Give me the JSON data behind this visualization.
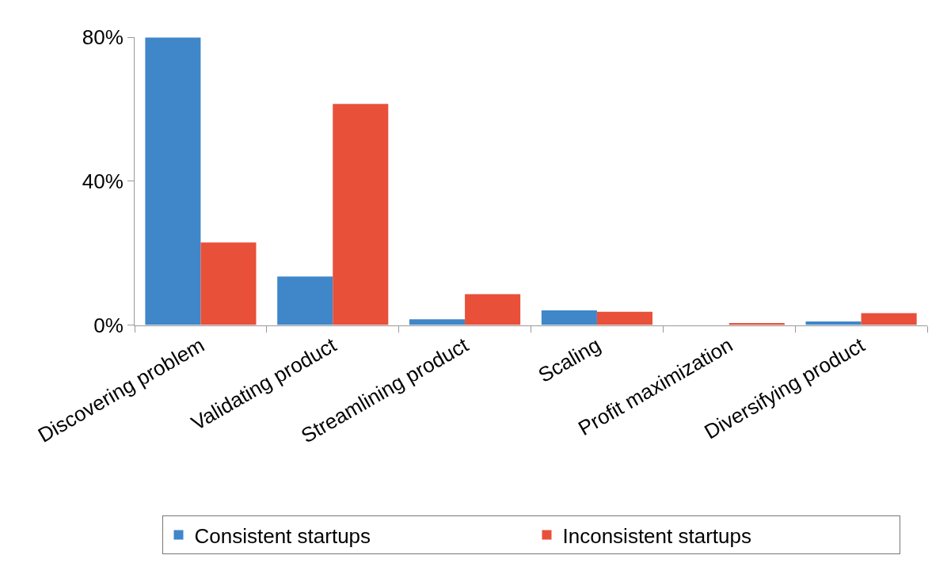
{
  "chart_data": {
    "type": "bar",
    "categories": [
      "Discovering problem",
      "Validating product",
      "Streamlining product",
      "Scaling",
      "Profit maximization",
      "Diversifying product"
    ],
    "series": [
      {
        "name": "Consistent startups",
        "color": "#3f87c9",
        "values": [
          80,
          13.5,
          1.6,
          4.1,
          0,
          1
        ]
      },
      {
        "name": "Inconsistent startups",
        "color": "#e8503a",
        "values": [
          23,
          61.5,
          8.6,
          3.7,
          0.6,
          3.3
        ]
      }
    ],
    "ylim": [
      0,
      80
    ],
    "yticks": [
      {
        "value": 0,
        "label": "0%"
      },
      {
        "value": 40,
        "label": "40%"
      },
      {
        "value": 80,
        "label": "80%"
      }
    ],
    "legend": "bottom"
  }
}
